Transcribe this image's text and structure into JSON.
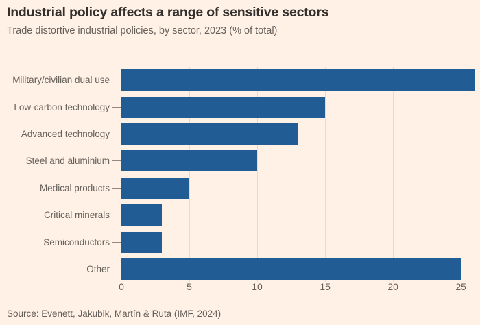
{
  "header": {
    "title": "Industrial policy affects a range of sensitive sectors",
    "subtitle": "Trade distortive industrial policies, by sector, 2023 (% of total)"
  },
  "chart_data": {
    "type": "bar",
    "orientation": "horizontal",
    "title": "Industrial policy affects a range of sensitive sectors",
    "subtitle": "Trade distortive industrial policies, by sector, 2023 (% of total)",
    "categories": [
      "Military/civilian dual use",
      "Low-carbon technology",
      "Advanced technology",
      "Steel and aluminium",
      "Medical products",
      "Critical minerals",
      "Semiconductors",
      "Other"
    ],
    "values": [
      26,
      15,
      13,
      10,
      5,
      3,
      3,
      25
    ],
    "xlabel": "",
    "ylabel": "",
    "xlim": [
      0,
      26
    ],
    "x_ticks": [
      0,
      5,
      10,
      15,
      20,
      25
    ],
    "grid": "vertical-only",
    "legend": "none",
    "bar_color": "#225C94",
    "background_color": "#FFF1E5",
    "gridline_color": "#E9DACB",
    "text_color": "#66605B"
  },
  "footer": {
    "source": "Source: Evenett, Jakubik, Martín & Ruta (IMF, 2024)"
  }
}
